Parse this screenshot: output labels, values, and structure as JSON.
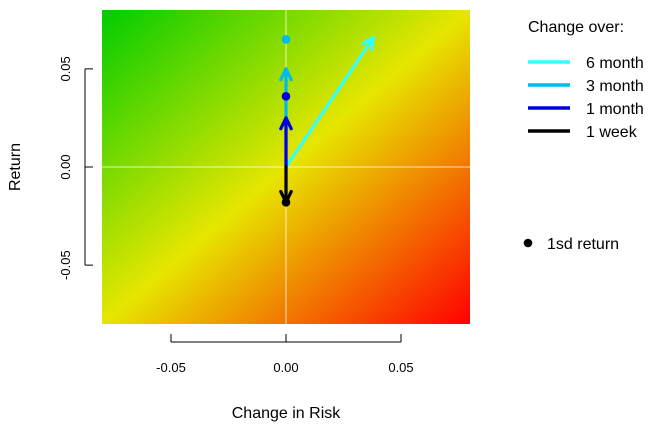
{
  "chart_data": {
    "type": "line",
    "title": "",
    "xlabel": "Change in Risk",
    "ylabel": "Return",
    "xlim": [
      -0.08,
      0.08
    ],
    "ylim": [
      -0.08,
      0.08
    ],
    "x_ticks": [
      "-0.05",
      "0.00",
      "0.05"
    ],
    "y_ticks": [
      "-0.05",
      "0.00",
      "0.05"
    ],
    "x_tick_values": [
      -0.05,
      0.0,
      0.05
    ],
    "y_tick_values": [
      -0.05,
      0.0,
      0.05
    ],
    "grid": false,
    "zero_reference_lines": true,
    "background": "gradient: green (top-left) through yellow (diagonal) to red (bottom-right)",
    "legend_placement": "right",
    "legend_title": "Change over:",
    "series": [
      {
        "name": "6 month",
        "color": "#33FFFF",
        "x": [
          0.0,
          0.038
        ],
        "y": [
          0.0,
          0.066
        ]
      },
      {
        "name": "3 month",
        "color": "#00BBEE",
        "x": [
          0.0,
          0.0
        ],
        "y": [
          0.0,
          0.05
        ]
      },
      {
        "name": "1 month",
        "color": "#0000DD",
        "x": [
          0.0,
          0.0
        ],
        "y": [
          0.0,
          0.025
        ]
      },
      {
        "name": "1 week",
        "color": "#000000",
        "x": [
          0.0,
          0.0
        ],
        "y": [
          0.0,
          -0.018
        ]
      }
    ],
    "points": {
      "label": "1sd return",
      "values": [
        {
          "x": 0.0,
          "y": 0.065,
          "color": "#00BBEE"
        },
        {
          "x": 0.0,
          "y": 0.036,
          "color": "#0000DD"
        },
        {
          "x": 0.0,
          "y": -0.018,
          "color": "#000000"
        }
      ]
    }
  }
}
